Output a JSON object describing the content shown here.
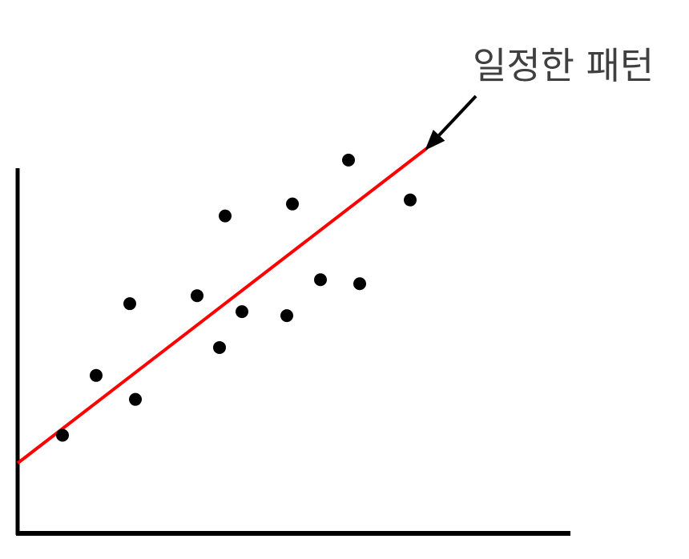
{
  "chart_data": {
    "type": "scatter",
    "title": "",
    "xlabel": "",
    "ylabel": "",
    "xlim": [
      0,
      100
    ],
    "ylim": [
      0,
      100
    ],
    "grid": false,
    "legend": "none",
    "points": [
      {
        "x": 8,
        "y": 25
      },
      {
        "x": 14,
        "y": 40
      },
      {
        "x": 20,
        "y": 58
      },
      {
        "x": 21,
        "y": 34
      },
      {
        "x": 32,
        "y": 60
      },
      {
        "x": 36,
        "y": 47
      },
      {
        "x": 37,
        "y": 80
      },
      {
        "x": 40,
        "y": 56
      },
      {
        "x": 48,
        "y": 55
      },
      {
        "x": 49,
        "y": 83
      },
      {
        "x": 54,
        "y": 64
      },
      {
        "x": 59,
        "y": 94
      },
      {
        "x": 61,
        "y": 63
      },
      {
        "x": 70,
        "y": 84
      }
    ],
    "trendline": {
      "x": [
        0,
        73
      ],
      "y": [
        18,
        97
      ]
    },
    "annotation": {
      "text": "일정한 패턴",
      "target": {
        "x": 73,
        "y": 97
      }
    },
    "colors": {
      "points": "#000000",
      "trendline": "#ff0000",
      "axes": "#000000",
      "annotation": "#404040"
    }
  }
}
